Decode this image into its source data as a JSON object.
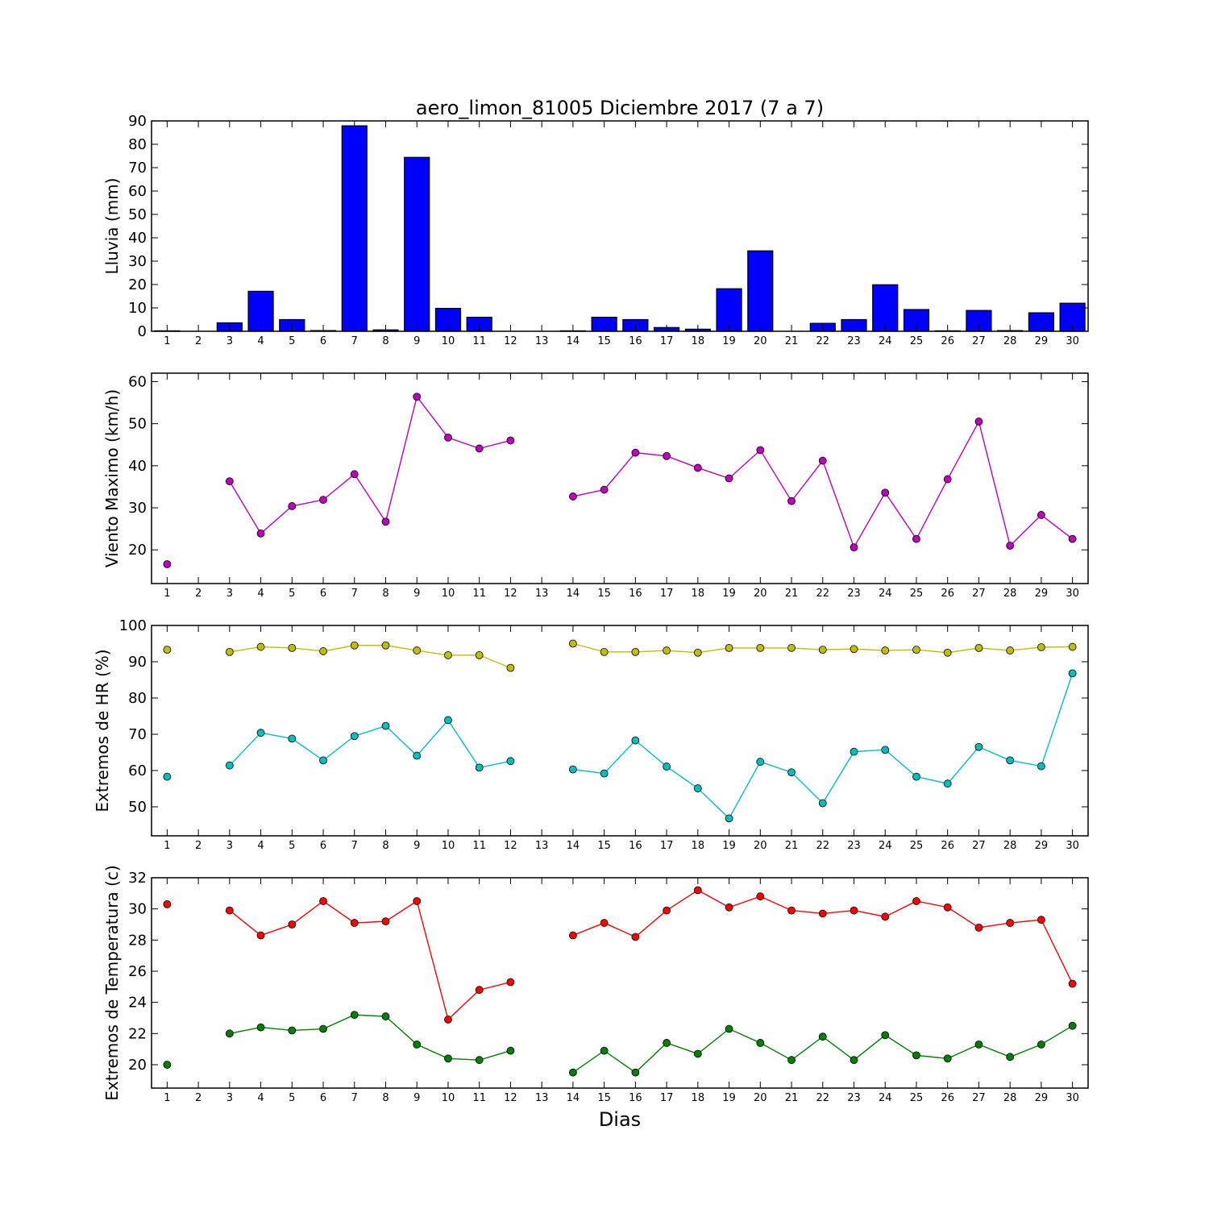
{
  "figure": {
    "title": "aero_limon_81005 Diciembre 2017  (7 a 7)",
    "xlabel": "Dias"
  },
  "chart_data": [
    {
      "type": "bar",
      "ylabel": "Lluvia (mm)",
      "ylim": [
        0,
        90
      ],
      "yticks": [
        0,
        10,
        20,
        30,
        40,
        50,
        60,
        70,
        80,
        90
      ],
      "x": [
        1,
        2,
        3,
        4,
        5,
        6,
        7,
        8,
        9,
        10,
        11,
        12,
        13,
        14,
        15,
        16,
        17,
        18,
        19,
        20,
        21,
        22,
        23,
        24,
        25,
        26,
        27,
        28,
        29,
        30
      ],
      "xticks": [
        1,
        2,
        3,
        4,
        5,
        6,
        7,
        8,
        9,
        10,
        11,
        12,
        13,
        14,
        15,
        16,
        17,
        18,
        19,
        20,
        21,
        22,
        23,
        24,
        25,
        26,
        27,
        28,
        29,
        30
      ],
      "grid": false,
      "series": [
        {
          "color": "#0000ff",
          "values": [
            0.2,
            null,
            3.6,
            17.1,
            5.0,
            0.3,
            87.9,
            0.6,
            74.4,
            9.8,
            6.0,
            null,
            null,
            0.2,
            6.0,
            5.0,
            1.6,
            0.9,
            18.2,
            34.4,
            null,
            3.4,
            5.0,
            19.9,
            9.3,
            0.2,
            8.9,
            0.3,
            7.9,
            12.0
          ]
        }
      ]
    },
    {
      "type": "line",
      "ylabel": "Viento Maximo (km/h)",
      "ylim": [
        12,
        62
      ],
      "yticks": [
        20,
        30,
        40,
        50,
        60
      ],
      "x": [
        1,
        2,
        3,
        4,
        5,
        6,
        7,
        8,
        9,
        10,
        11,
        12,
        13,
        14,
        15,
        16,
        17,
        18,
        19,
        20,
        21,
        22,
        23,
        24,
        25,
        26,
        27,
        28,
        29,
        30
      ],
      "xticks": [
        1,
        2,
        3,
        4,
        5,
        6,
        7,
        8,
        9,
        10,
        11,
        12,
        13,
        14,
        15,
        16,
        17,
        18,
        19,
        20,
        21,
        22,
        23,
        24,
        25,
        26,
        27,
        28,
        29,
        30
      ],
      "grid": false,
      "series": [
        {
          "color": "#bf00bf",
          "values": [
            16.6,
            null,
            36.3,
            23.9,
            30.4,
            31.9,
            38.0,
            26.7,
            56.4,
            46.7,
            44.1,
            46.0,
            null,
            32.7,
            34.3,
            43.1,
            42.3,
            39.5,
            37.0,
            43.7,
            31.6,
            41.2,
            20.6,
            33.6,
            22.6,
            36.8,
            50.5,
            21.0,
            28.3,
            22.6
          ]
        }
      ]
    },
    {
      "type": "line",
      "ylabel": "Extremos de HR (%)",
      "ylim": [
        42,
        100
      ],
      "yticks": [
        50,
        60,
        70,
        80,
        90,
        100
      ],
      "x": [
        1,
        2,
        3,
        4,
        5,
        6,
        7,
        8,
        9,
        10,
        11,
        12,
        13,
        14,
        15,
        16,
        17,
        18,
        19,
        20,
        21,
        22,
        23,
        24,
        25,
        26,
        27,
        28,
        29,
        30
      ],
      "xticks": [
        1,
        2,
        3,
        4,
        5,
        6,
        7,
        8,
        9,
        10,
        11,
        12,
        13,
        14,
        15,
        16,
        17,
        18,
        19,
        20,
        21,
        22,
        23,
        24,
        25,
        26,
        27,
        28,
        29,
        30
      ],
      "grid": false,
      "series": [
        {
          "color": "#bfbf00",
          "values": [
            93.3,
            null,
            92.7,
            94.1,
            93.8,
            92.9,
            94.5,
            94.5,
            93.1,
            91.8,
            91.8,
            88.3,
            null,
            95.0,
            92.7,
            92.7,
            93.1,
            92.5,
            93.8,
            93.8,
            93.8,
            93.3,
            93.5,
            93.1,
            93.3,
            92.5,
            93.8,
            93.1,
            94.0,
            94.1
          ]
        },
        {
          "color": "#00bfbf",
          "values": [
            58.3,
            null,
            61.4,
            70.4,
            68.8,
            62.8,
            69.5,
            72.3,
            64.1,
            73.9,
            60.8,
            62.6,
            null,
            60.3,
            59.2,
            68.3,
            61.1,
            55.1,
            46.8,
            62.4,
            59.5,
            51.0,
            65.2,
            65.7,
            58.3,
            56.4,
            66.5,
            62.8,
            61.2,
            86.8
          ]
        }
      ]
    },
    {
      "type": "line",
      "ylabel": "Extremos de Temperatura (c)",
      "ylim": [
        18.5,
        32
      ],
      "yticks": [
        20,
        22,
        24,
        26,
        28,
        30,
        32
      ],
      "x": [
        1,
        2,
        3,
        4,
        5,
        6,
        7,
        8,
        9,
        10,
        11,
        12,
        13,
        14,
        15,
        16,
        17,
        18,
        19,
        20,
        21,
        22,
        23,
        24,
        25,
        26,
        27,
        28,
        29,
        30
      ],
      "xticks": [
        1,
        2,
        3,
        4,
        5,
        6,
        7,
        8,
        9,
        10,
        11,
        12,
        13,
        14,
        15,
        16,
        17,
        18,
        19,
        20,
        21,
        22,
        23,
        24,
        25,
        26,
        27,
        28,
        29,
        30
      ],
      "grid": false,
      "series": [
        {
          "color": "#ff0000",
          "values": [
            30.3,
            null,
            29.9,
            28.3,
            29.0,
            30.5,
            29.1,
            29.2,
            30.5,
            22.9,
            24.8,
            25.3,
            null,
            28.3,
            29.1,
            28.2,
            29.9,
            31.2,
            30.1,
            30.8,
            29.9,
            29.7,
            29.9,
            29.5,
            30.5,
            30.1,
            28.8,
            29.1,
            29.3,
            25.2
          ]
        },
        {
          "color": "#008000",
          "values": [
            20.0,
            null,
            22.0,
            22.4,
            22.2,
            22.3,
            23.2,
            23.1,
            21.3,
            20.4,
            20.3,
            20.9,
            null,
            19.5,
            20.9,
            19.5,
            21.4,
            20.7,
            22.3,
            21.4,
            20.3,
            21.8,
            20.3,
            21.9,
            20.6,
            20.4,
            21.3,
            20.5,
            21.3,
            22.5
          ]
        }
      ]
    }
  ]
}
